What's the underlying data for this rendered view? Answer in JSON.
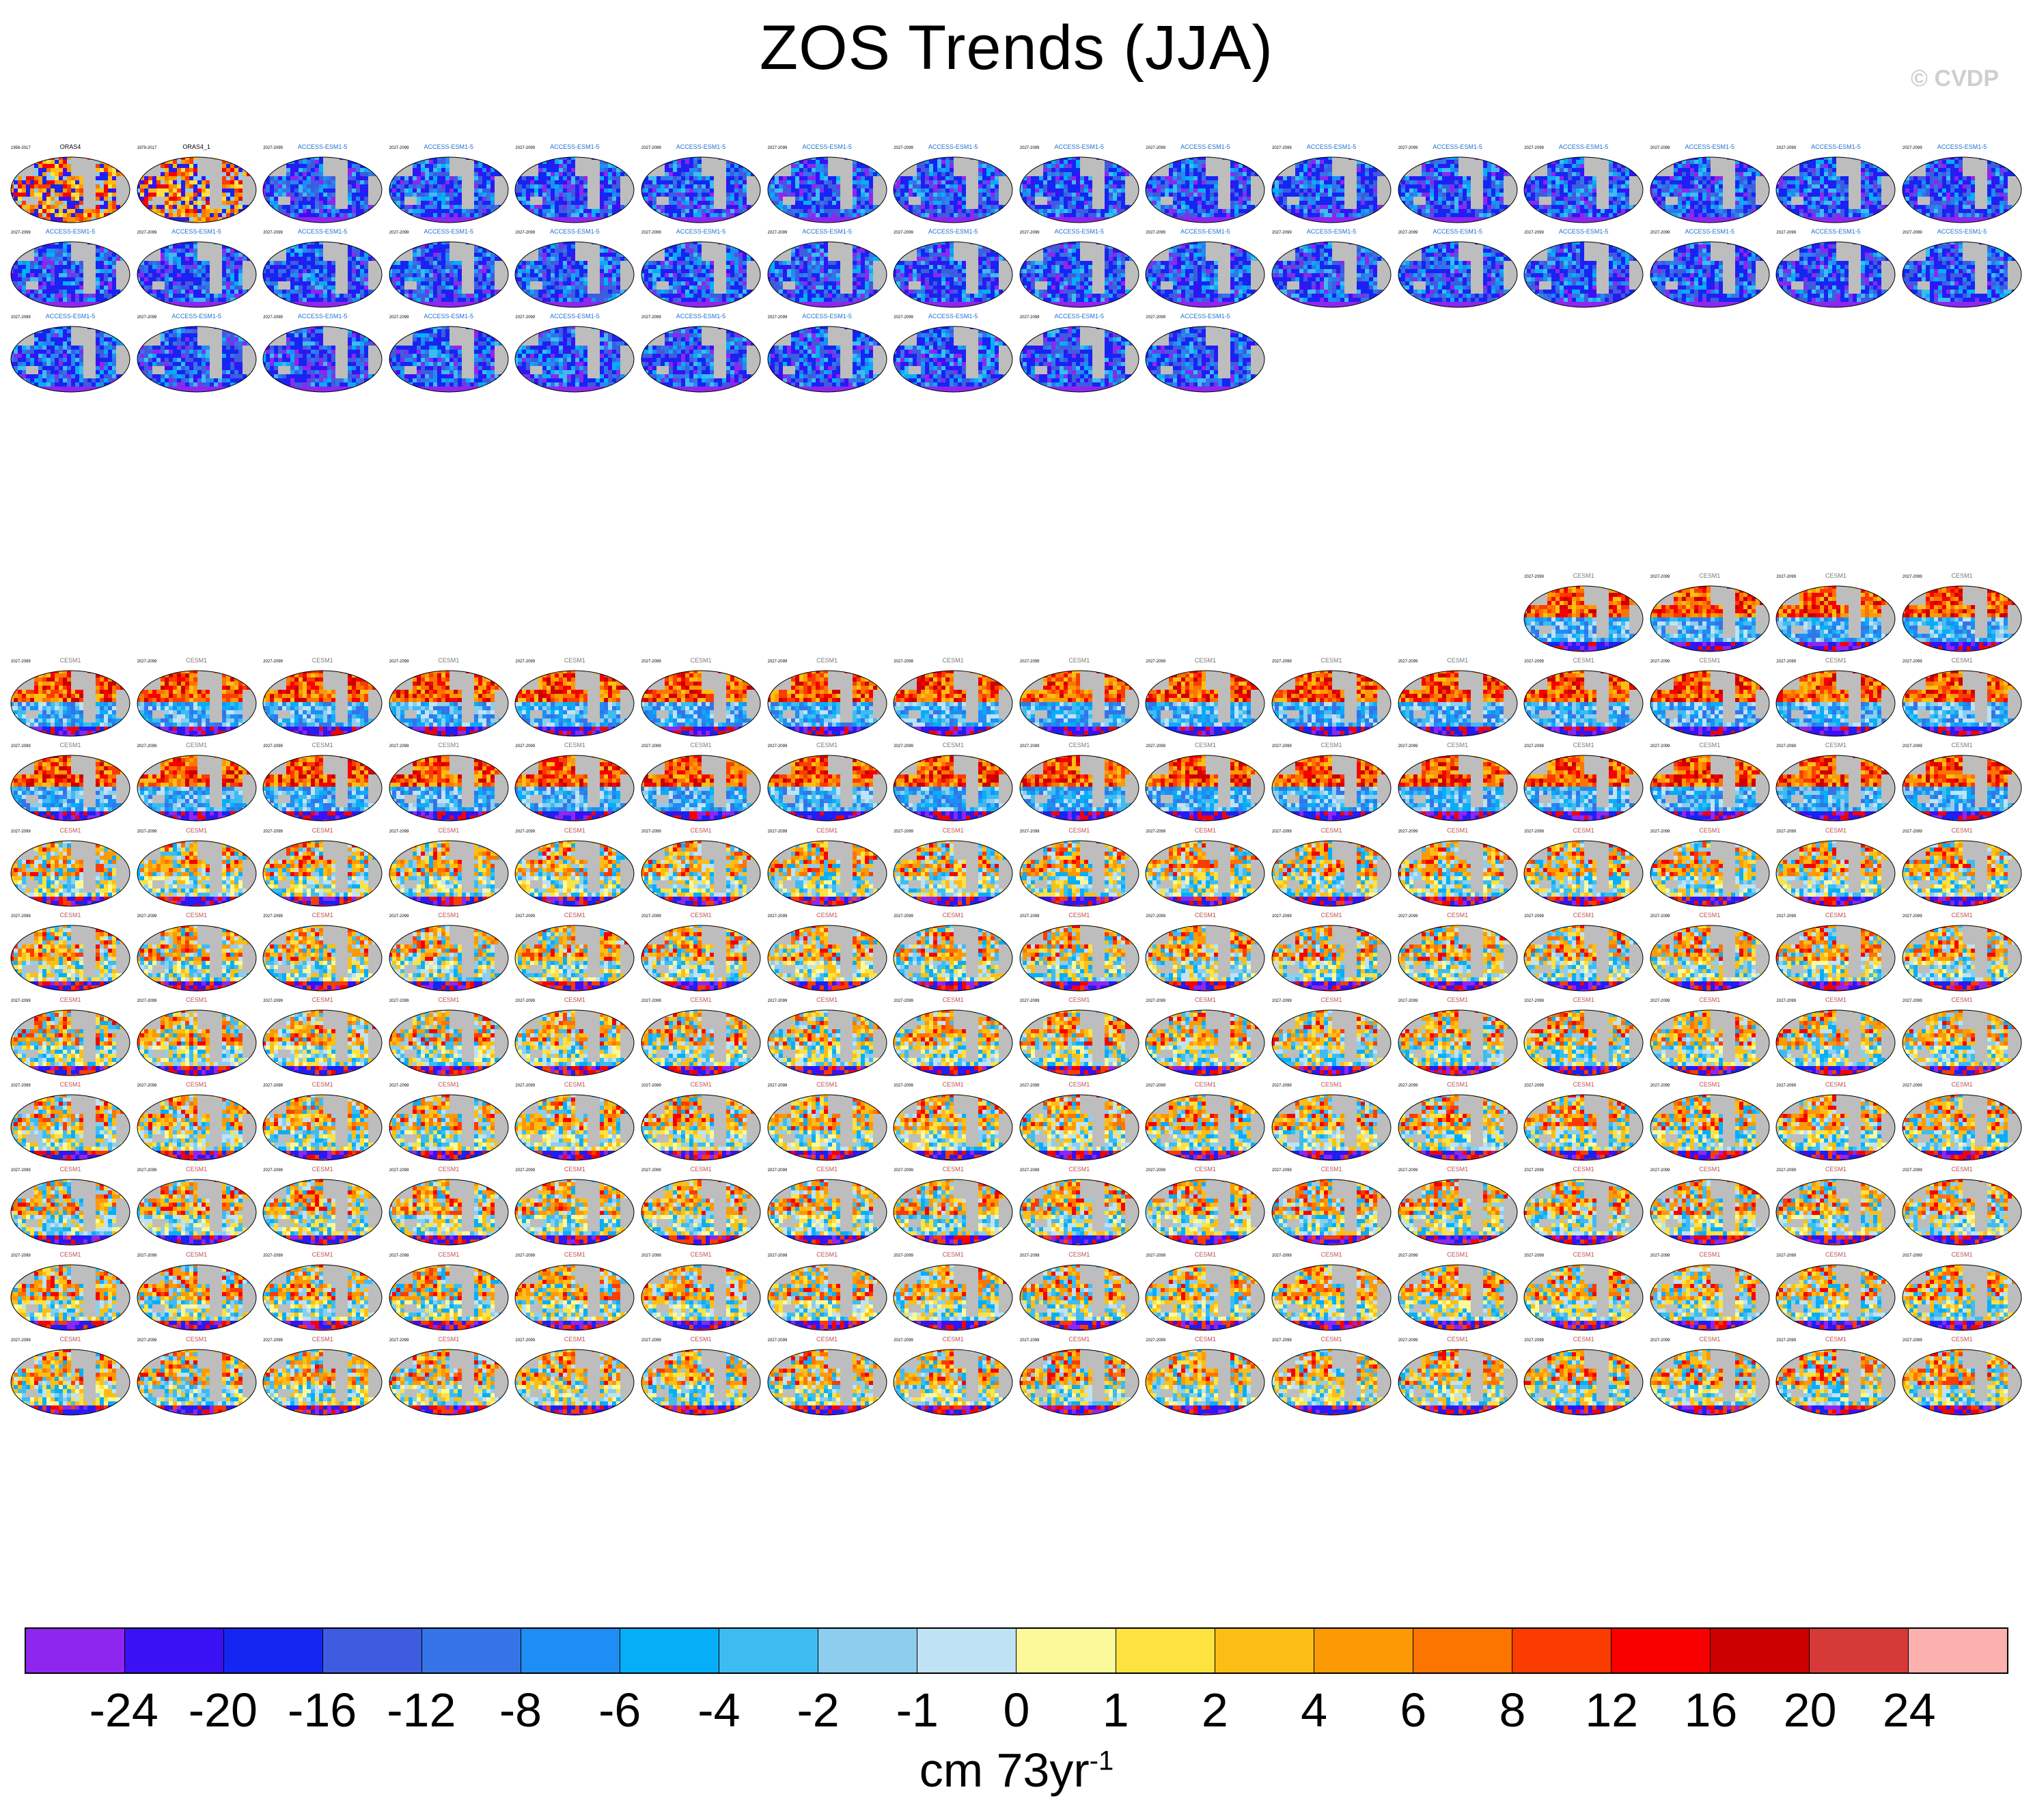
{
  "title": "ZOS Trends (JJA)",
  "copyright": "© CVDP",
  "chart_data": {
    "type": "heatmap",
    "title": "ZOS Trends (JJA)",
    "colorbar": {
      "units": "cm 73yr",
      "units_superscript": "-1",
      "tick_labels": [
        "-24",
        "-20",
        "-16",
        "-12",
        "-8",
        "-6",
        "-4",
        "-2",
        "-1",
        "0",
        "1",
        "2",
        "4",
        "6",
        "8",
        "12",
        "16",
        "20",
        "24"
      ],
      "colors": [
        "#8f26f0",
        "#3a10f4",
        "#1525f2",
        "#3e5cdf",
        "#3474e8",
        "#1e8df4",
        "#06aef8",
        "#3dbcf2",
        "#8dcdee",
        "#bfe2f4",
        "#fcf99b",
        "#fde240",
        "#fcbe15",
        "#fb9a05",
        "#fb7500",
        "#fb3c00",
        "#f80000",
        "#cc0000",
        "#d63a38",
        "#fcb0b0"
      ]
    },
    "group1": {
      "rows": [
        16,
        16,
        10
      ],
      "first_panels": [
        {
          "title": "ORAS4",
          "years": "1958-2017"
        },
        {
          "title": "ORAS4_1",
          "years": "1979-2017"
        }
      ],
      "model_label": "ACCESS-ESM1-5",
      "years": "2027-2099"
    },
    "group2": {
      "rows": [
        4,
        16,
        16,
        16,
        16,
        16,
        16,
        16,
        16,
        16
      ],
      "model_label": "CESM1",
      "years": "2027-2099"
    }
  }
}
